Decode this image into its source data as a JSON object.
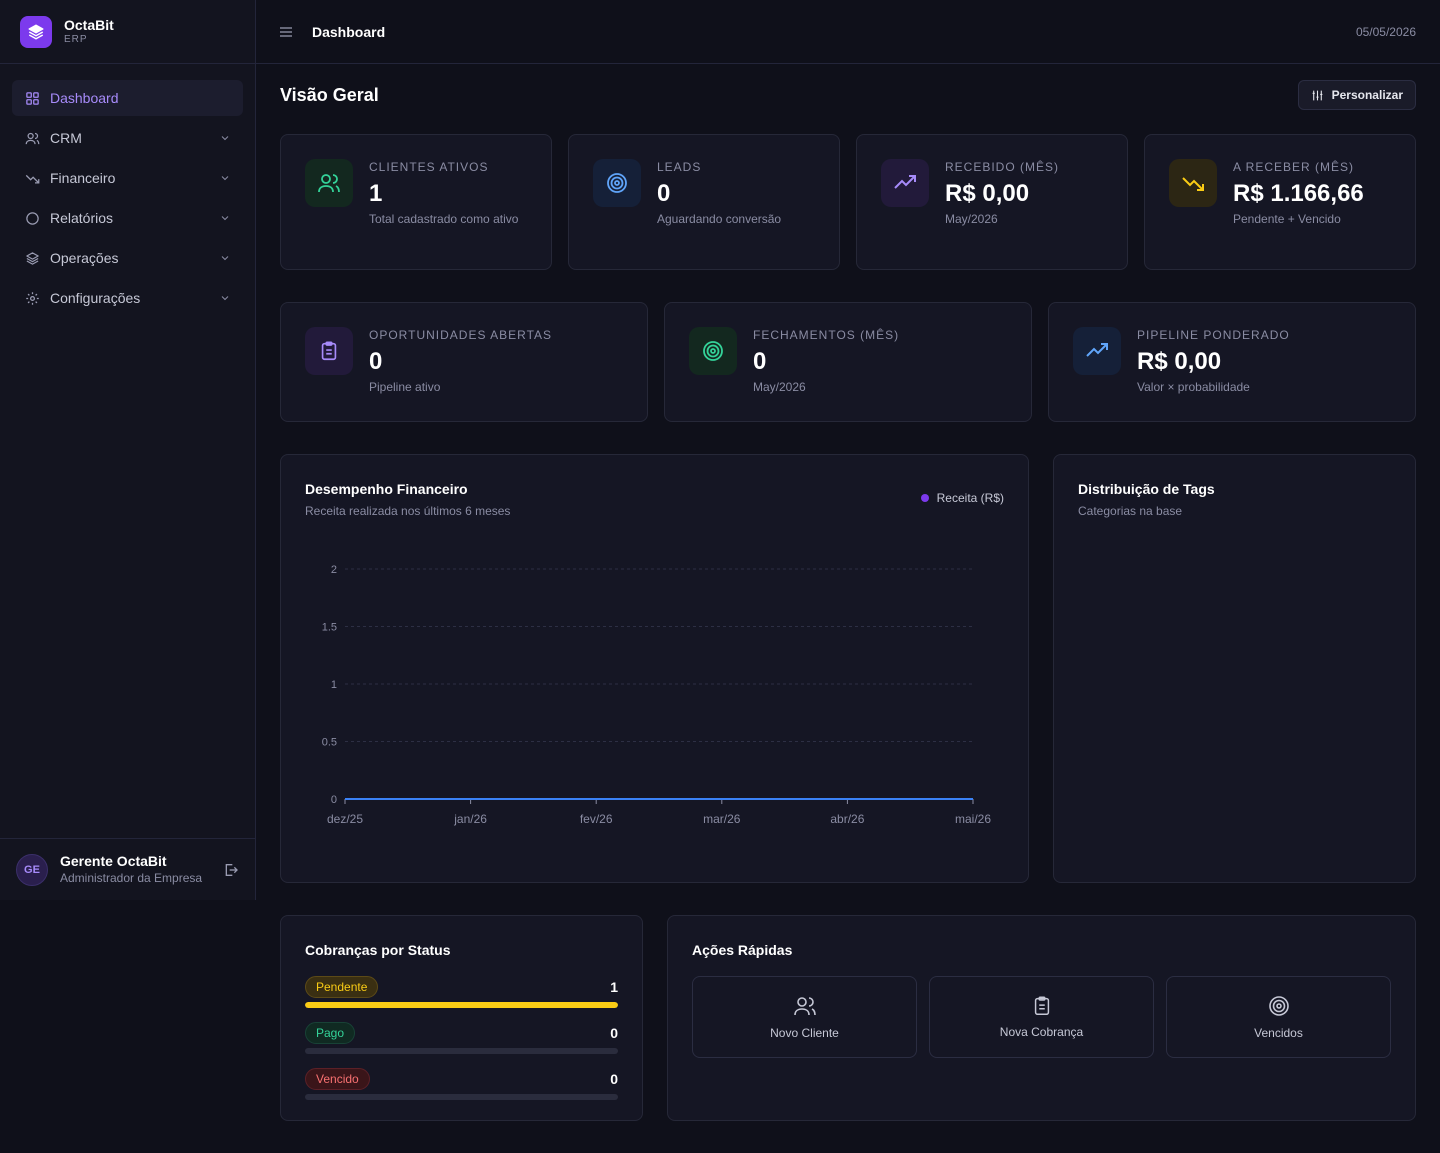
{
  "brand": {
    "name": "OctaBit",
    "sub": "ERP"
  },
  "sidebar": {
    "items": [
      {
        "label": "Dashboard",
        "icon": "grid-icon",
        "active": true
      },
      {
        "label": "CRM",
        "icon": "users-icon"
      },
      {
        "label": "Financeiro",
        "icon": "trending-down-icon"
      },
      {
        "label": "Relatórios",
        "icon": "circle-icon"
      },
      {
        "label": "Operações",
        "icon": "layers-icon"
      },
      {
        "label": "Configurações",
        "icon": "gear-icon"
      }
    ]
  },
  "user": {
    "initials": "GE",
    "name": "Gerente OctaBit",
    "role": "Administrador da Empresa"
  },
  "header": {
    "title": "Dashboard",
    "date": "05/05/2026"
  },
  "page": {
    "title": "Visão Geral",
    "customize_label": "Personalizar"
  },
  "kpis": [
    {
      "label": "CLIENTES ATIVOS",
      "value": "1",
      "sub": "Total cadastrado como ativo",
      "color": "#34d399"
    },
    {
      "label": "LEADS",
      "value": "0",
      "sub": "Aguardando conversão",
      "color": "#60a5fa"
    },
    {
      "label": "RECEBIDO (MÊS)",
      "value": "R$ 0,00",
      "sub": "May/2026",
      "color": "#a78bfa"
    },
    {
      "label": "A RECEBER (MÊS)",
      "value": "R$ 1.166,66",
      "sub": "Pendente + Vencido",
      "color": "#facc15"
    }
  ],
  "kpis2": [
    {
      "label": "OPORTUNIDADES ABERTAS",
      "value": "0",
      "sub": "Pipeline ativo",
      "color": "#a78bfa"
    },
    {
      "label": "FECHAMENTOS (MÊS)",
      "value": "0",
      "sub": "May/2026",
      "color": "#34d399"
    },
    {
      "label": "PIPELINE PONDERADO",
      "value": "R$ 0,00",
      "sub": "Valor × probabilidade",
      "color": "#60a5fa"
    }
  ],
  "finance": {
    "title": "Desempenho Financeiro",
    "subtitle": "Receita realizada nos últimos 6 meses",
    "legend": "Receita (R$)"
  },
  "chart_data": {
    "type": "line",
    "categories": [
      "dez/25",
      "jan/26",
      "fev/26",
      "mar/26",
      "abr/26",
      "mai/26"
    ],
    "series": [
      {
        "name": "Receita (R$)",
        "values": [
          0,
          0,
          0,
          0,
          0,
          0
        ]
      }
    ],
    "yticks": [
      "0",
      "0.5",
      "1",
      "1.5",
      "2"
    ],
    "ylim": [
      0,
      2
    ],
    "grid": true,
    "legend_position": "top-right"
  },
  "tags": {
    "title": "Distribuição de Tags",
    "subtitle": "Categorias na base"
  },
  "status": {
    "title": "Cobranças por Status",
    "items": [
      {
        "label": "Pendente",
        "count": "1",
        "fill": 1,
        "color": "#facc15"
      },
      {
        "label": "Pago",
        "count": "0",
        "fill": 0,
        "color": "#34d399"
      },
      {
        "label": "Vencido",
        "count": "0",
        "fill": 0,
        "color": "#f87171"
      }
    ]
  },
  "actions": {
    "title": "Ações Rápidas",
    "items": [
      {
        "label": "Novo Cliente",
        "icon": "users-icon"
      },
      {
        "label": "Nova Cobrança",
        "icon": "clipboard-icon"
      },
      {
        "label": "Vencidos",
        "icon": "target-icon"
      }
    ]
  }
}
